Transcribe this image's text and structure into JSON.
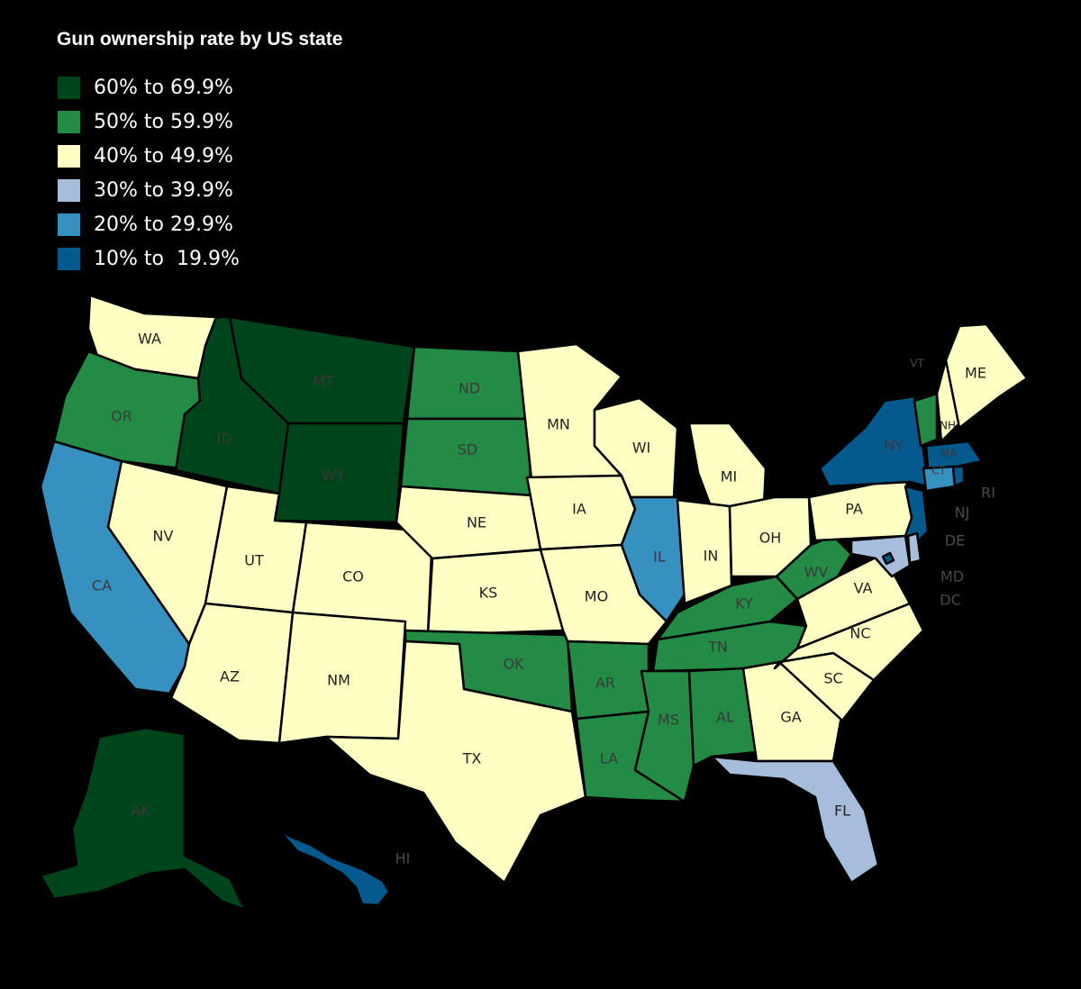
{
  "title": "Gun ownership rate by US state",
  "legend": [
    {
      "label": "60% to 69.9%",
      "color": "#00441b"
    },
    {
      "label": "50% to 59.9%",
      "color": "#238b45"
    },
    {
      "label": "40% to 49.9%",
      "color": "#ffffc4"
    },
    {
      "label": "30% to 39.9%",
      "color": "#a6bddb"
    },
    {
      "label": "20% to 29.9%",
      "color": "#3690c0"
    },
    {
      "label": "10% to  19.9%",
      "color": "#045a8d"
    }
  ],
  "states": [
    {
      "code": "WA",
      "bin": 2
    },
    {
      "code": "OR",
      "bin": 1
    },
    {
      "code": "CA",
      "bin": 4
    },
    {
      "code": "NV",
      "bin": 2
    },
    {
      "code": "ID",
      "bin": 0
    },
    {
      "code": "MT",
      "bin": 0
    },
    {
      "code": "WY",
      "bin": 0
    },
    {
      "code": "UT",
      "bin": 2
    },
    {
      "code": "AZ",
      "bin": 2
    },
    {
      "code": "CO",
      "bin": 2
    },
    {
      "code": "NM",
      "bin": 2
    },
    {
      "code": "ND",
      "bin": 1
    },
    {
      "code": "SD",
      "bin": 1
    },
    {
      "code": "NE",
      "bin": 2
    },
    {
      "code": "KS",
      "bin": 2
    },
    {
      "code": "OK",
      "bin": 1
    },
    {
      "code": "TX",
      "bin": 2
    },
    {
      "code": "MN",
      "bin": 2
    },
    {
      "code": "IA",
      "bin": 2
    },
    {
      "code": "MO",
      "bin": 2
    },
    {
      "code": "AR",
      "bin": 1
    },
    {
      "code": "LA",
      "bin": 1
    },
    {
      "code": "WI",
      "bin": 2
    },
    {
      "code": "IL",
      "bin": 4
    },
    {
      "code": "MI",
      "bin": 2
    },
    {
      "code": "IN",
      "bin": 2
    },
    {
      "code": "OH",
      "bin": 2
    },
    {
      "code": "KY",
      "bin": 1
    },
    {
      "code": "TN",
      "bin": 1
    },
    {
      "code": "MS",
      "bin": 1
    },
    {
      "code": "AL",
      "bin": 1
    },
    {
      "code": "GA",
      "bin": 2
    },
    {
      "code": "FL",
      "bin": 3
    },
    {
      "code": "SC",
      "bin": 2
    },
    {
      "code": "NC",
      "bin": 2
    },
    {
      "code": "VA",
      "bin": 2
    },
    {
      "code": "WV",
      "bin": 1
    },
    {
      "code": "PA",
      "bin": 2
    },
    {
      "code": "NY",
      "bin": 5
    },
    {
      "code": "VT",
      "bin": 1
    },
    {
      "code": "NH",
      "bin": 2
    },
    {
      "code": "ME",
      "bin": 2
    },
    {
      "code": "MA",
      "bin": 5
    },
    {
      "code": "CT",
      "bin": 4
    },
    {
      "code": "RI",
      "bin": 5
    },
    {
      "code": "NJ",
      "bin": 5
    },
    {
      "code": "DE",
      "bin": 3
    },
    {
      "code": "MD",
      "bin": 3
    },
    {
      "code": "DC",
      "bin": 5
    },
    {
      "code": "AK",
      "bin": 0
    },
    {
      "code": "HI",
      "bin": 5
    }
  ],
  "outside_labels": [
    "VT",
    "RI",
    "NJ",
    "DE",
    "MD",
    "DC",
    "HI"
  ]
}
